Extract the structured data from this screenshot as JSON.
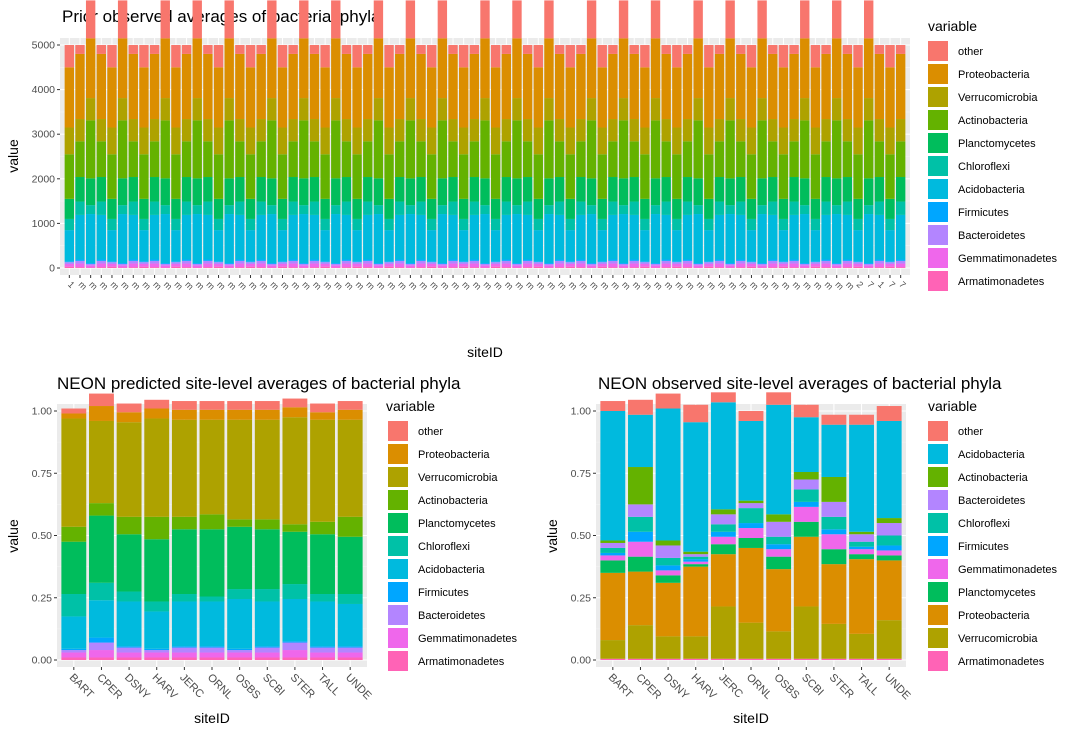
{
  "colors": {
    "other": "#F8766D",
    "Proteobacteria": "#DB8E00",
    "Verrucomicrobia": "#AEA200",
    "Actinobacteria": "#64B200",
    "Planctomycetes": "#00BD5C",
    "Chloroflexi": "#00C1A7",
    "Acidobacteria": "#00BADE",
    "Firmicutes": "#00A6FF",
    "Bacteroidetes": "#B385FF",
    "Gemmatimonadetes": "#EF67EB",
    "Armatimonadetes": "#FF63B6"
  },
  "chart_data": [
    {
      "id": "top",
      "type": "bar",
      "stacked": true,
      "title": "Prior observed averages of bacterial phyla",
      "xlabel": "siteID",
      "ylabel": "value",
      "ylim": [
        0,
        5000
      ],
      "yticks": [
        0,
        1000,
        2000,
        3000,
        4000,
        5000
      ],
      "legend_title": "variable",
      "legend": [
        "other",
        "Proteobacteria",
        "Verrucomicrobia",
        "Actinobacteria",
        "Planctomycetes",
        "Chloroflexi",
        "Acidobacteria",
        "Firmicutes",
        "Bacteroidetes",
        "Gemmatimonadetes",
        "Armatimonadetes"
      ],
      "category_count": 79,
      "category_labels": [
        "1",
        "m",
        "m",
        "m",
        "m",
        "m",
        "m",
        "m",
        "m",
        "m",
        "m",
        "m",
        "m",
        "m",
        "m",
        "m",
        "m",
        "m",
        "m",
        "m",
        "m",
        "m",
        "m",
        "m",
        "m",
        "m",
        "m",
        "m",
        "m",
        "m",
        "m",
        "m",
        "m",
        "m",
        "m",
        "m",
        "m",
        "m",
        "m",
        "m",
        "m",
        "m",
        "m",
        "m",
        "m",
        "m",
        "m",
        "m",
        "m",
        "m",
        "m",
        "m",
        "m",
        "m",
        "m",
        "m",
        "m",
        "m",
        "m",
        "m",
        "m",
        "m",
        "m",
        "m",
        "m",
        "m",
        "m",
        "m",
        "m",
        "m",
        "m",
        "m",
        "m",
        "m",
        "2",
        "7",
        "1",
        "7",
        "7"
      ],
      "series_order": [
        "Armatimonadetes",
        "Gemmatimonadetes",
        "Bacteroidetes",
        "Firmicutes",
        "Acidobacteria",
        "Chloroflexi",
        "Planctomycetes",
        "Actinobacteria",
        "Verrucomicrobia",
        "Proteobacteria",
        "other"
      ],
      "samples": [
        [
          30,
          60,
          40,
          20,
          700,
          250,
          450,
          1000,
          600,
          1350,
          500
        ],
        [
          20,
          80,
          60,
          30,
          1000,
          300,
          550,
          800,
          500,
          1460,
          200
        ],
        [
          10,
          50,
          30,
          20,
          1100,
          200,
          600,
          1300,
          500,
          1340,
          850
        ]
      ],
      "sample_pattern": [
        0,
        1,
        2,
        1,
        0,
        2,
        1,
        0,
        1,
        2,
        0,
        1,
        2,
        1,
        0,
        2,
        1,
        0,
        1,
        2,
        0,
        1,
        2,
        1,
        0,
        2,
        1,
        0,
        1,
        2,
        0,
        1,
        2,
        1,
        0,
        2,
        1,
        0,
        1,
        2,
        0,
        1,
        2,
        1,
        0,
        2,
        1,
        0,
        1,
        2,
        0,
        1,
        2,
        1,
        0,
        2,
        1,
        0,
        1,
        2,
        0,
        1,
        2,
        1,
        0,
        2,
        1,
        0,
        1,
        2,
        0,
        1,
        2,
        1,
        0,
        2,
        1,
        0,
        1
      ]
    },
    {
      "id": "left",
      "type": "bar",
      "stacked": true,
      "title": "NEON predicted site-level averages of bacterial phyla",
      "xlabel": "siteID",
      "ylabel": "value",
      "ylim": [
        0,
        1
      ],
      "yticks": [
        0,
        0.25,
        0.5,
        0.75,
        1
      ],
      "ytick_labels": [
        "0.00",
        "0.25",
        "0.50",
        "0.75",
        "1.00"
      ],
      "legend_title": "variable",
      "legend": [
        "other",
        "Proteobacteria",
        "Verrucomicrobia",
        "Actinobacteria",
        "Planctomycetes",
        "Chloroflexi",
        "Acidobacteria",
        "Firmicutes",
        "Bacteroidetes",
        "Gemmatimonadetes",
        "Armatimonadetes"
      ],
      "categories": [
        "BART",
        "CPER",
        "DSNY",
        "HARV",
        "JERC",
        "ORNL",
        "OSBS",
        "SCBI",
        "STER",
        "TALL",
        "UNDE"
      ],
      "series_order": [
        "Armatimonadetes",
        "Gemmatimonadetes",
        "Bacteroidetes",
        "Firmicutes",
        "Acidobacteria",
        "Chloroflexi",
        "Planctomycetes",
        "Actinobacteria",
        "Verrucomicrobia",
        "Proteobacteria",
        "other"
      ],
      "series": [
        {
          "name": "Armatimonadetes",
          "values": [
            0.01,
            0.01,
            0.01,
            0.01,
            0.01,
            0.01,
            0.01,
            0.01,
            0.01,
            0.01,
            0.01
          ]
        },
        {
          "name": "Gemmatimonadetes",
          "values": [
            0.02,
            0.03,
            0.02,
            0.02,
            0.02,
            0.02,
            0.02,
            0.02,
            0.03,
            0.02,
            0.02
          ]
        },
        {
          "name": "Bacteroidetes",
          "values": [
            0.01,
            0.03,
            0.02,
            0.01,
            0.02,
            0.02,
            0.01,
            0.02,
            0.03,
            0.02,
            0.02
          ]
        },
        {
          "name": "Firmicutes",
          "values": [
            0.005,
            0.02,
            0.005,
            0.005,
            0.005,
            0.005,
            0.005,
            0.005,
            0.005,
            0.005,
            0.005
          ]
        },
        {
          "name": "Acidobacteria",
          "values": [
            0.13,
            0.15,
            0.18,
            0.15,
            0.18,
            0.18,
            0.2,
            0.18,
            0.17,
            0.18,
            0.17
          ]
        },
        {
          "name": "Chloroflexi",
          "values": [
            0.09,
            0.07,
            0.04,
            0.04,
            0.03,
            0.02,
            0.04,
            0.05,
            0.06,
            0.03,
            0.04
          ]
        },
        {
          "name": "Planctomycetes",
          "values": [
            0.21,
            0.27,
            0.23,
            0.25,
            0.26,
            0.27,
            0.25,
            0.24,
            0.21,
            0.24,
            0.23
          ]
        },
        {
          "name": "Actinobacteria",
          "values": [
            0.06,
            0.05,
            0.07,
            0.09,
            0.05,
            0.06,
            0.03,
            0.04,
            0.03,
            0.05,
            0.08
          ]
        },
        {
          "name": "Verrucomicrobia",
          "values": [
            0.435,
            0.33,
            0.38,
            0.395,
            0.39,
            0.38,
            0.4,
            0.4,
            0.43,
            0.41,
            0.39
          ]
        },
        {
          "name": "Proteobacteria",
          "values": [
            0.02,
            0.06,
            0.04,
            0.04,
            0.04,
            0.04,
            0.04,
            0.04,
            0.04,
            0.03,
            0.04
          ]
        }
      ],
      "other_values": [
        0.02,
        0.05,
        0.035,
        0.035,
        0.035,
        0.035,
        0.035,
        0.035,
        0.035,
        0.035,
        0.035
      ]
    },
    {
      "id": "right",
      "type": "bar",
      "stacked": true,
      "title": "NEON observed site-level averages of bacterial phyla",
      "xlabel": "siteID",
      "ylabel": "value",
      "ylim": [
        0,
        1
      ],
      "yticks": [
        0,
        0.25,
        0.5,
        0.75,
        1
      ],
      "ytick_labels": [
        "0.00",
        "0.25",
        "0.50",
        "0.75",
        "1.00"
      ],
      "legend_title": "variable",
      "legend": [
        "other",
        "Acidobacteria",
        "Actinobacteria",
        "Bacteroidetes",
        "Chloroflexi",
        "Firmicutes",
        "Gemmatimonadetes",
        "Planctomycetes",
        "Proteobacteria",
        "Verrucomicrobia",
        "Armatimonadetes"
      ],
      "categories": [
        "BART",
        "CPER",
        "DSNY",
        "HARV",
        "JERC",
        "ORNL",
        "OSBS",
        "SCBI",
        "STER",
        "TALL",
        "UNDE"
      ],
      "series_order": [
        "Armatimonadetes",
        "Verrucomicrobia",
        "Proteobacteria",
        "Planctomycetes",
        "Gemmatimonadetes",
        "Firmicutes",
        "Chloroflexi",
        "Bacteroidetes",
        "Actinobacteria",
        "Acidobacteria",
        "other"
      ],
      "series": [
        {
          "name": "Armatimonadetes",
          "values": [
            0.005,
            0.005,
            0.005,
            0.005,
            0.005,
            0.005,
            0.005,
            0.005,
            0.005,
            0.005,
            0.005
          ]
        },
        {
          "name": "Verrucomicrobia",
          "values": [
            0.075,
            0.135,
            0.09,
            0.09,
            0.21,
            0.145,
            0.11,
            0.21,
            0.14,
            0.1,
            0.155
          ]
        },
        {
          "name": "Proteobacteria",
          "values": [
            0.27,
            0.215,
            0.215,
            0.28,
            0.21,
            0.3,
            0.25,
            0.28,
            0.24,
            0.3,
            0.24
          ]
        },
        {
          "name": "Planctomycetes",
          "values": [
            0.05,
            0.06,
            0.03,
            0.01,
            0.04,
            0.04,
            0.05,
            0.06,
            0.06,
            0.02,
            0.02
          ]
        },
        {
          "name": "Gemmatimonadetes",
          "values": [
            0.02,
            0.06,
            0.02,
            0.01,
            0.03,
            0.04,
            0.03,
            0.06,
            0.06,
            0.02,
            0.02
          ]
        },
        {
          "name": "Firmicutes",
          "values": [
            0.01,
            0.04,
            0.02,
            0.01,
            0.02,
            0.02,
            0.02,
            0.02,
            0.02,
            0.01,
            0.02
          ]
        },
        {
          "name": "Chloroflexi",
          "values": [
            0.02,
            0.06,
            0.03,
            0.01,
            0.03,
            0.06,
            0.03,
            0.05,
            0.05,
            0.02,
            0.04
          ]
        },
        {
          "name": "Bacteroidetes",
          "values": [
            0.02,
            0.05,
            0.05,
            0.01,
            0.04,
            0.02,
            0.06,
            0.04,
            0.06,
            0.03,
            0.05
          ]
        },
        {
          "name": "Actinobacteria",
          "values": [
            0.01,
            0.15,
            0.02,
            0.01,
            0.02,
            0.01,
            0.03,
            0.03,
            0.1,
            0.01,
            0.02
          ]
        },
        {
          "name": "Acidobacteria",
          "values": [
            0.52,
            0.21,
            0.53,
            0.52,
            0.43,
            0.32,
            0.44,
            0.22,
            0.21,
            0.43,
            0.39
          ]
        }
      ],
      "other_values": [
        0.04,
        0.06,
        0.06,
        0.07,
        0.04,
        0.04,
        0.05,
        0.05,
        0.04,
        0.04,
        0.06
      ]
    }
  ]
}
